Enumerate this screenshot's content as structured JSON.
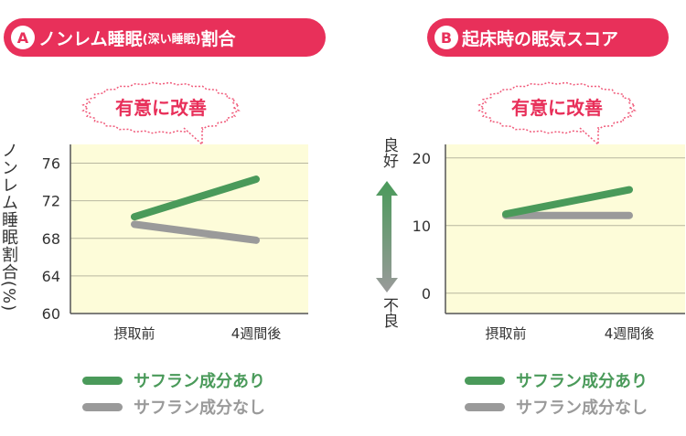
{
  "panels": [
    {
      "badge": "A",
      "title_main": "ノンレム睡眠",
      "title_paren": "(深い睡眠)",
      "title_end": "割合",
      "callout": "有意に改善",
      "ylabel": "ノンレム睡眠割合(%)",
      "legend": [
        {
          "label": "サフラン成分あり",
          "color": "#4a9a5a"
        },
        {
          "label": "サフラン成分なし",
          "color": "#9a9a9a"
        }
      ]
    },
    {
      "badge": "B",
      "title_main": "起床時の眠気スコア",
      "callout": "有意に改善",
      "scale_top": "良好",
      "scale_bottom": "不良",
      "legend": [
        {
          "label": "サフラン成分あり",
          "color": "#4a9a5a"
        },
        {
          "label": "サフラン成分なし",
          "color": "#9a9a9a"
        }
      ]
    }
  ],
  "colors": {
    "accent": "#e8305a",
    "plot_bg": "#fdfcd9",
    "with": "#4a9a5a",
    "without": "#9a9a9a"
  },
  "chart_data": [
    {
      "type": "line",
      "title": "ノンレム睡眠(深い睡眠)割合",
      "ylabel": "ノンレム睡眠割合(%)",
      "categories": [
        "摂取前",
        "4週間後"
      ],
      "yticks": [
        60,
        64,
        68,
        72,
        76
      ],
      "ylim": [
        60,
        78
      ],
      "series": [
        {
          "name": "サフラン成分あり",
          "values": [
            70.3,
            74.3
          ]
        },
        {
          "name": "サフラン成分なし",
          "values": [
            69.5,
            67.8
          ]
        }
      ]
    },
    {
      "type": "line",
      "title": "起床時の眠気スコア",
      "categories": [
        "摂取前",
        "4週間後"
      ],
      "yticks": [
        0,
        10,
        20
      ],
      "ylim": [
        -3,
        22
      ],
      "series": [
        {
          "name": "サフラン成分あり",
          "values": [
            11.7,
            15.3
          ]
        },
        {
          "name": "サフラン成分なし",
          "values": [
            11.5,
            11.5
          ]
        }
      ]
    }
  ]
}
